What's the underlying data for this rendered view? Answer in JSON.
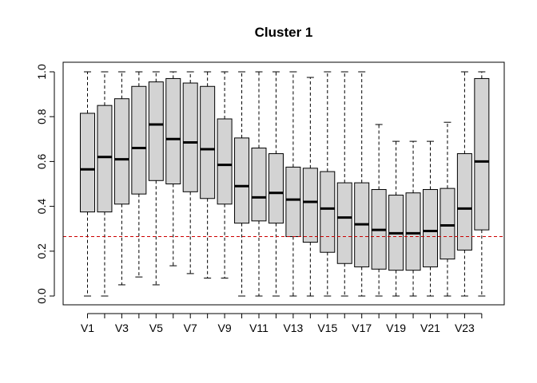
{
  "chart_data": {
    "type": "boxplot",
    "title": "Cluster  1",
    "xlabel": "",
    "ylabel": "",
    "ylim": [
      -0.04,
      1.04
    ],
    "y_ticks": [
      0.0,
      0.2,
      0.4,
      0.6,
      0.8,
      1.0
    ],
    "y_tick_labels": [
      "0.0",
      "0.2",
      "0.4",
      "0.6",
      "0.8",
      "1.0"
    ],
    "categories": [
      "V1",
      "V2",
      "V3",
      "V4",
      "V5",
      "V6",
      "V7",
      "V8",
      "V9",
      "V10",
      "V11",
      "V12",
      "V13",
      "V14",
      "V15",
      "V16",
      "V17",
      "V18",
      "V19",
      "V20",
      "V21",
      "V22",
      "V23",
      "V24"
    ],
    "x_tick_labels_shown": [
      "V1",
      "V3",
      "V5",
      "V7",
      "V9",
      "V11",
      "V13",
      "V15",
      "V17",
      "V19",
      "V21",
      "V23"
    ],
    "box_fill_color": "#d3d3d3",
    "reference_line": {
      "y": 0.265,
      "color": "#cc0000",
      "style": "dashed"
    },
    "boxes": [
      {
        "name": "V1",
        "min": 0.0,
        "q1": 0.375,
        "median": 0.565,
        "q3": 0.815,
        "max": 1.0
      },
      {
        "name": "V2",
        "min": 0.0,
        "q1": 0.375,
        "median": 0.62,
        "q3": 0.85,
        "max": 1.0
      },
      {
        "name": "V3",
        "min": 0.05,
        "q1": 0.41,
        "median": 0.61,
        "q3": 0.88,
        "max": 1.0
      },
      {
        "name": "V4",
        "min": 0.085,
        "q1": 0.455,
        "median": 0.66,
        "q3": 0.935,
        "max": 1.0
      },
      {
        "name": "V5",
        "min": 0.05,
        "q1": 0.515,
        "median": 0.765,
        "q3": 0.955,
        "max": 1.0
      },
      {
        "name": "V6",
        "min": 0.135,
        "q1": 0.5,
        "median": 0.7,
        "q3": 0.97,
        "max": 1.0
      },
      {
        "name": "V7",
        "min": 0.1,
        "q1": 0.465,
        "median": 0.685,
        "q3": 0.95,
        "max": 1.0
      },
      {
        "name": "V8",
        "min": 0.08,
        "q1": 0.435,
        "median": 0.655,
        "q3": 0.935,
        "max": 1.0
      },
      {
        "name": "V9",
        "min": 0.08,
        "q1": 0.41,
        "median": 0.585,
        "q3": 0.79,
        "max": 1.0
      },
      {
        "name": "V10",
        "min": 0.0,
        "q1": 0.325,
        "median": 0.49,
        "q3": 0.705,
        "max": 1.0
      },
      {
        "name": "V11",
        "min": 0.0,
        "q1": 0.335,
        "median": 0.44,
        "q3": 0.66,
        "max": 1.0
      },
      {
        "name": "V12",
        "min": 0.0,
        "q1": 0.325,
        "median": 0.46,
        "q3": 0.635,
        "max": 1.0
      },
      {
        "name": "V13",
        "min": 0.0,
        "q1": 0.265,
        "median": 0.43,
        "q3": 0.575,
        "max": 1.0
      },
      {
        "name": "V14",
        "min": 0.0,
        "q1": 0.24,
        "median": 0.42,
        "q3": 0.57,
        "max": 0.975
      },
      {
        "name": "V15",
        "min": 0.0,
        "q1": 0.195,
        "median": 0.39,
        "q3": 0.555,
        "max": 1.0
      },
      {
        "name": "V16",
        "min": 0.0,
        "q1": 0.145,
        "median": 0.35,
        "q3": 0.505,
        "max": 1.0
      },
      {
        "name": "V17",
        "min": 0.0,
        "q1": 0.13,
        "median": 0.32,
        "q3": 0.505,
        "max": 1.0
      },
      {
        "name": "V18",
        "min": 0.0,
        "q1": 0.12,
        "median": 0.295,
        "q3": 0.475,
        "max": 0.765
      },
      {
        "name": "V19",
        "min": 0.0,
        "q1": 0.115,
        "median": 0.28,
        "q3": 0.45,
        "max": 0.69
      },
      {
        "name": "V20",
        "min": 0.0,
        "q1": 0.115,
        "median": 0.28,
        "q3": 0.46,
        "max": 0.69
      },
      {
        "name": "V21",
        "min": 0.0,
        "q1": 0.13,
        "median": 0.29,
        "q3": 0.475,
        "max": 0.69
      },
      {
        "name": "V22",
        "min": 0.0,
        "q1": 0.165,
        "median": 0.315,
        "q3": 0.48,
        "max": 0.775
      },
      {
        "name": "V23",
        "min": 0.0,
        "q1": 0.205,
        "median": 0.39,
        "q3": 0.635,
        "max": 1.0
      },
      {
        "name": "V24",
        "min": 0.0,
        "q1": 0.295,
        "median": 0.6,
        "q3": 0.97,
        "max": 1.0
      }
    ]
  }
}
